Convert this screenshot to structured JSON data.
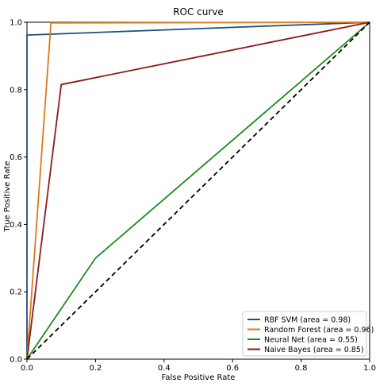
{
  "chart_data": {
    "type": "line",
    "title": "ROC curve",
    "xlabel": "False Positive Rate",
    "ylabel": "True Positive Rate",
    "xlim": [
      0,
      1
    ],
    "ylim": [
      0,
      1
    ],
    "xticks": [
      "0.0",
      "0.2",
      "0.4",
      "0.6",
      "0.8",
      "1.0"
    ],
    "yticks": [
      "0.0",
      "0.2",
      "0.4",
      "0.6",
      "0.8",
      "1.0"
    ],
    "grid": false,
    "legend_position": "bottom-right",
    "series": [
      {
        "name": "RBF SVM (area = 0.98)",
        "color": "#1f4e79",
        "x": [
          0.0,
          0.0,
          1.0
        ],
        "y": [
          0.0,
          0.962,
          1.0
        ]
      },
      {
        "name": "Random Forest (area = 0.96)",
        "color": "#d97a1e",
        "x": [
          0.0,
          0.07,
          1.0
        ],
        "y": [
          0.0,
          0.998,
          1.0
        ]
      },
      {
        "name": "Neural Net (area = 0.55)",
        "color": "#1e8a1e",
        "x": [
          0.0,
          0.2,
          1.0
        ],
        "y": [
          0.0,
          0.3,
          1.0
        ]
      },
      {
        "name": "Naive Bayes (area = 0.85)",
        "color": "#8b1a1a",
        "x": [
          0.0,
          0.1,
          1.0
        ],
        "y": [
          0.0,
          0.815,
          1.0
        ]
      }
    ],
    "reference_line": {
      "x": [
        0,
        1
      ],
      "y": [
        0,
        1
      ],
      "color": "#000000",
      "style": "dashed"
    }
  }
}
